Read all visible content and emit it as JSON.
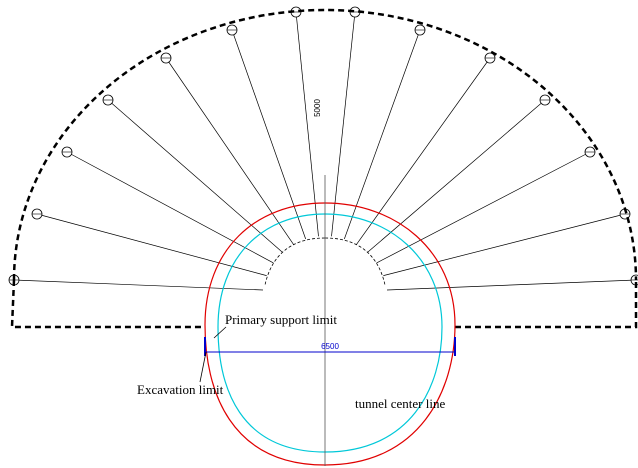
{
  "labels": {
    "primary_support": "Primary support limit",
    "excavation": "Excavation limit",
    "center_line": "tunnel center line"
  },
  "dimensions": {
    "height": "5000",
    "width": "6500"
  }
}
